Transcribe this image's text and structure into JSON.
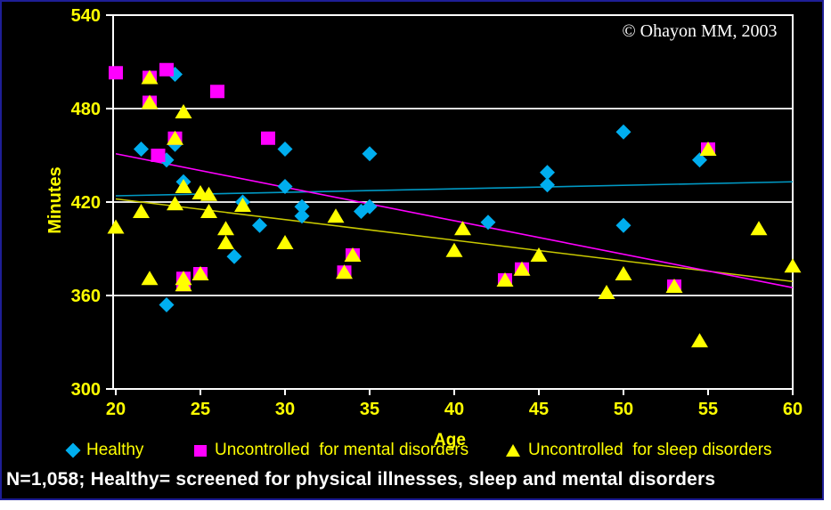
{
  "copyright": "© Ohayon MM, 2003",
  "footnote": "N=1,058;  Healthy= screened for physical illnesses, sleep and mental disorders",
  "colors": {
    "background": "#000000",
    "slide_border": "#1e1e96",
    "axis": "#ffffff",
    "tick_text": "#ffff00",
    "footnote_text": "#ffffff",
    "copyright_text": "#ffffff"
  },
  "chart_data": {
    "type": "scatter",
    "title": "",
    "xlabel": "Age",
    "ylabel": "Minutes",
    "xlim": [
      20,
      60
    ],
    "ylim": [
      300,
      540
    ],
    "x_ticks": [
      20,
      25,
      30,
      35,
      40,
      45,
      50,
      55,
      60
    ],
    "y_ticks": [
      300,
      360,
      420,
      480,
      540
    ],
    "gridlines": [
      360,
      420,
      480
    ],
    "legend_position": "bottom",
    "series": [
      {
        "name": "Healthy",
        "marker": "diamond",
        "color": "#00aeef",
        "points": [
          [
            23.5,
            502
          ],
          [
            21.5,
            454
          ],
          [
            23.5,
            457
          ],
          [
            23,
            447
          ],
          [
            30,
            454
          ],
          [
            35,
            451
          ],
          [
            50,
            465
          ],
          [
            54.5,
            447
          ],
          [
            45.5,
            439
          ],
          [
            45.5,
            431
          ],
          [
            24,
            433
          ],
          [
            27.5,
            420
          ],
          [
            30,
            430
          ],
          [
            31,
            417
          ],
          [
            31,
            411
          ],
          [
            34.5,
            414
          ],
          [
            35,
            417
          ],
          [
            42,
            407
          ],
          [
            28.5,
            405
          ],
          [
            50,
            405
          ],
          [
            27,
            385
          ],
          [
            23,
            354
          ]
        ]
      },
      {
        "name": "Uncontrolled  for mental disorders",
        "marker": "square",
        "color": "#ff00ff",
        "points": [
          [
            20,
            503
          ],
          [
            22,
            500
          ],
          [
            23,
            505
          ],
          [
            26,
            491
          ],
          [
            22,
            484
          ],
          [
            23.5,
            461
          ],
          [
            22.5,
            450
          ],
          [
            29,
            461
          ],
          [
            55,
            454
          ],
          [
            34,
            386
          ],
          [
            33.5,
            375
          ],
          [
            44,
            377
          ],
          [
            43,
            370
          ],
          [
            24,
            371
          ],
          [
            24,
            367
          ],
          [
            25,
            374
          ],
          [
            53,
            366
          ]
        ]
      },
      {
        "name": "Uncontrolled  for sleep disorders",
        "marker": "triangle",
        "color": "#ffff00",
        "points": [
          [
            24,
            478
          ],
          [
            22,
            500
          ],
          [
            22,
            484
          ],
          [
            23.5,
            461
          ],
          [
            20,
            404
          ],
          [
            21.5,
            414
          ],
          [
            23.5,
            419
          ],
          [
            24,
            430
          ],
          [
            25,
            426
          ],
          [
            25.5,
            425
          ],
          [
            25.5,
            414
          ],
          [
            26.5,
            403
          ],
          [
            26.5,
            394
          ],
          [
            27.5,
            418
          ],
          [
            30,
            394
          ],
          [
            33,
            411
          ],
          [
            22,
            371
          ],
          [
            24,
            371
          ],
          [
            24,
            367
          ],
          [
            25,
            374
          ],
          [
            34,
            386
          ],
          [
            33.5,
            375
          ],
          [
            40,
            389
          ],
          [
            40.5,
            403
          ],
          [
            45,
            386
          ],
          [
            43,
            370
          ],
          [
            44,
            377
          ],
          [
            49,
            362
          ],
          [
            50,
            374
          ],
          [
            53,
            366
          ],
          [
            55,
            454
          ],
          [
            58,
            403
          ],
          [
            60,
            379
          ],
          [
            54.5,
            331
          ]
        ]
      }
    ],
    "trend_lines": [
      {
        "series": "Healthy",
        "color": "#0099c4",
        "from": [
          20,
          424
        ],
        "to": [
          60,
          433
        ]
      },
      {
        "series": "Uncontrolled  for sleep disorders",
        "color": "#c9c900",
        "from": [
          20,
          422
        ],
        "to": [
          60,
          369
        ]
      },
      {
        "series": "Uncontrolled  for mental disorders",
        "color": "#ff00ff",
        "from": [
          20,
          451
        ],
        "to": [
          60,
          365
        ]
      }
    ]
  }
}
